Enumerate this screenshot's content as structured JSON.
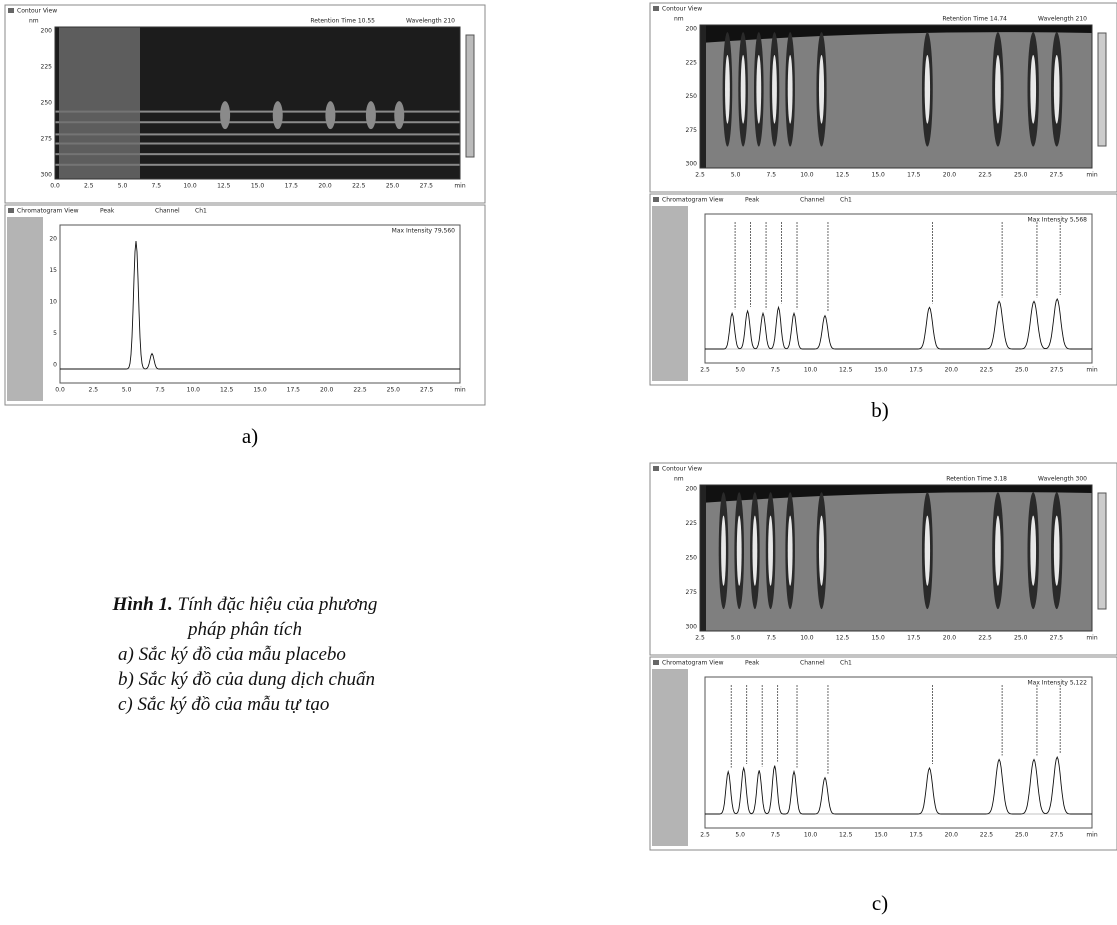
{
  "figure": {
    "caption_label": "Hình 1.",
    "caption_title": "Tính đặc hiệu của phương pháp phân tích",
    "items": [
      "a) Sắc ký đồ của mẫu placebo",
      "b) Sắc ký đồ của dung dịch chuẩn",
      "c) Sắc ký đồ của mẫu tự tạo"
    ]
  },
  "panels": [
    {
      "label": "a)",
      "contour": {
        "title": "Contour View",
        "unit": "nm",
        "retention_time": "Retention Time 10.55",
        "wavelength": "Wavelength 210",
        "yticks": [
          "200",
          "225",
          "250",
          "275",
          "300"
        ],
        "xticks": [
          "0.0",
          "2.5",
          "5.0",
          "7.5",
          "10.0",
          "12.5",
          "15.0",
          "17.5",
          "20.0",
          "22.5",
          "25.0",
          "27.5",
          "min"
        ]
      },
      "chromatogram": {
        "title": "Chromatogram View",
        "peak": "Peak",
        "channel": "Channel",
        "ch": "Ch1",
        "max_intensity": "Max Intensity 79,560",
        "yticks": [
          "20",
          "15",
          "10",
          "5",
          "0"
        ],
        "xticks": [
          "0.0",
          "2.5",
          "5.0",
          "7.5",
          "10.0",
          "12.5",
          "15.0",
          "17.5",
          "20.0",
          "22.5",
          "25.0",
          "27.5",
          "min"
        ]
      }
    },
    {
      "label": "b)",
      "contour": {
        "title": "Contour View",
        "unit": "nm",
        "retention_time": "Retention Time 14.74",
        "wavelength": "Wavelength 210",
        "yticks": [
          "200",
          "225",
          "250",
          "275",
          "300"
        ],
        "xticks": [
          "2.5",
          "5.0",
          "7.5",
          "10.0",
          "12.5",
          "15.0",
          "17.5",
          "20.0",
          "22.5",
          "25.0",
          "27.5",
          "min"
        ]
      },
      "chromatogram": {
        "title": "Chromatogram View",
        "peak": "Peak",
        "channel": "Channel",
        "ch": "Ch1",
        "max_intensity": "Max Intensity 5,568",
        "yticks": [],
        "xticks": [
          "2.5",
          "5.0",
          "7.5",
          "10.0",
          "12.5",
          "15.0",
          "17.5",
          "20.0",
          "22.5",
          "25.0",
          "27.5",
          "min"
        ]
      }
    },
    {
      "label": "c)",
      "contour": {
        "title": "Contour View",
        "unit": "nm",
        "retention_time": "Retention Time 3.18",
        "wavelength": "Wavelength 300",
        "yticks": [
          "200",
          "225",
          "250",
          "275",
          "300"
        ],
        "xticks": [
          "2.5",
          "5.0",
          "7.5",
          "10.0",
          "12.5",
          "15.0",
          "17.5",
          "20.0",
          "22.5",
          "25.0",
          "27.5",
          "min"
        ]
      },
      "chromatogram": {
        "title": "Chromatogram View",
        "peak": "Peak",
        "channel": "Channel",
        "ch": "Ch1",
        "max_intensity": "Max Intensity 5,122",
        "yticks": [],
        "xticks": [
          "2.5",
          "5.0",
          "7.5",
          "10.0",
          "12.5",
          "15.0",
          "17.5",
          "20.0",
          "22.5",
          "25.0",
          "27.5",
          "min"
        ]
      }
    }
  ]
}
